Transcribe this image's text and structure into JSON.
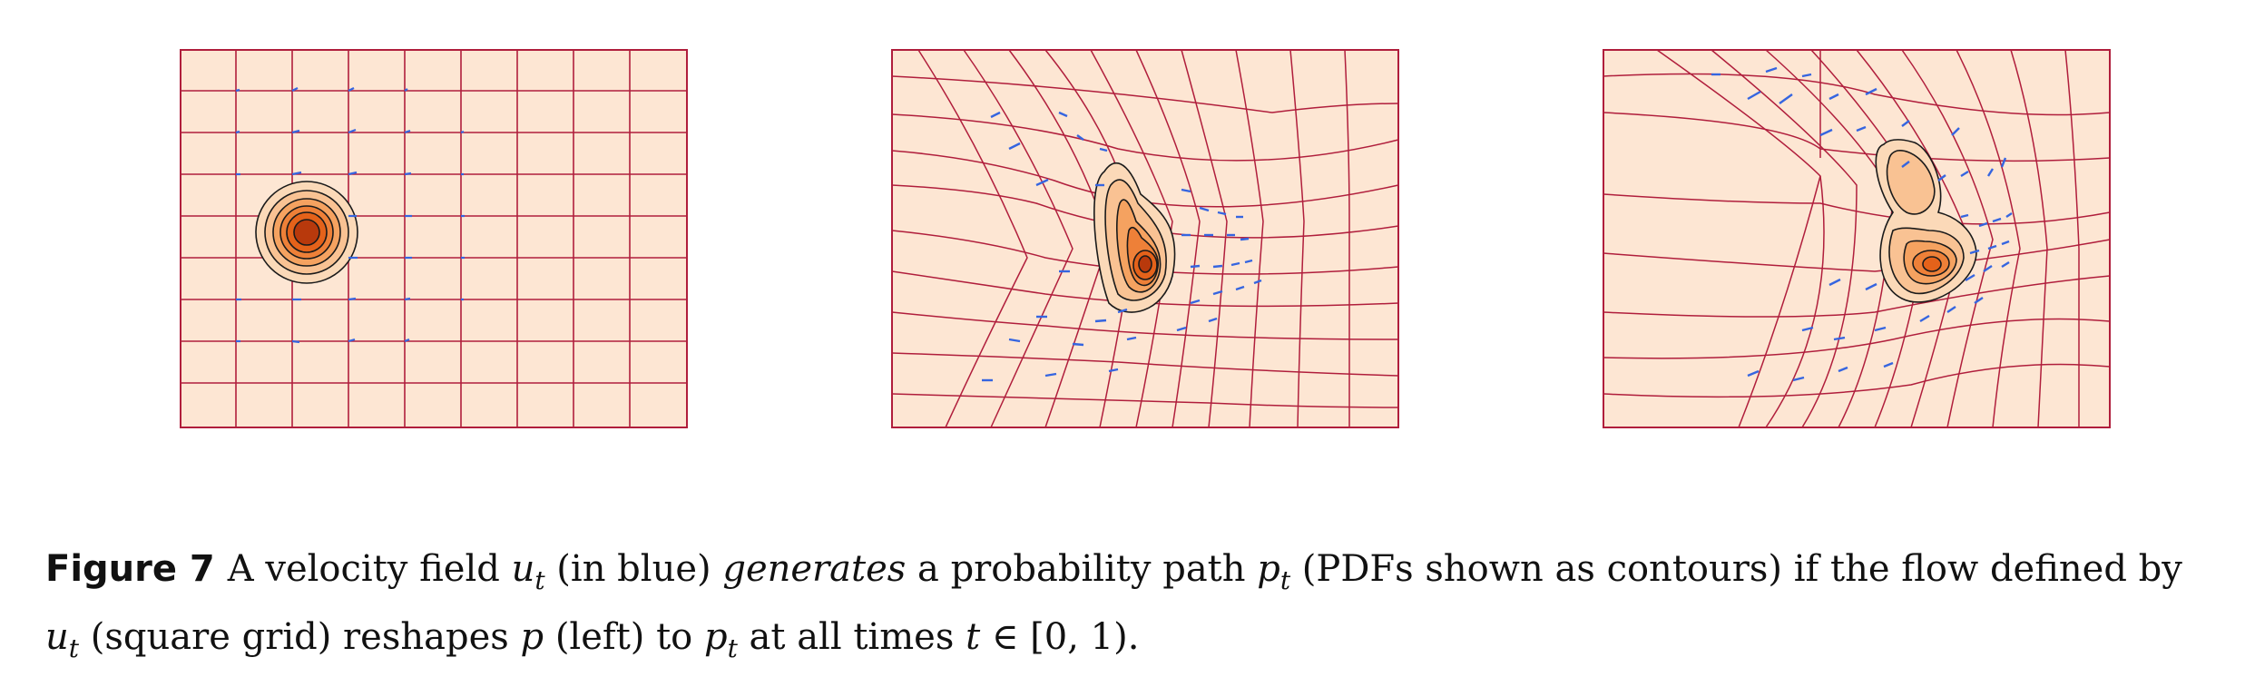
{
  "figure": {
    "panels": [
      {
        "id": "left"
      },
      {
        "id": "middle"
      },
      {
        "id": "right"
      }
    ],
    "colors": {
      "background": "#fde6d3",
      "grid": "#b01e3c",
      "arrows": "#3565e0",
      "contour_line": "#1a1a1a",
      "density_low": "#fbd0a8",
      "density_mid": "#f59c52",
      "density_high": "#e4621a",
      "density_peak": "#b8390c"
    },
    "caption": {
      "label": "Figure 7",
      "text_1": "A velocity field ",
      "u": "u",
      "t": "t",
      "text_2": " (in blue) ",
      "generates": "generates",
      "text_3": " a probability path ",
      "p": "p",
      "text_4": " (PDFs shown as contours) if the flow defined by",
      "text_5": " (square grid) reshapes ",
      "text_6": " (left) to ",
      "text_7": " at all times ",
      "text_8": " ∈ [0, 1)."
    }
  }
}
